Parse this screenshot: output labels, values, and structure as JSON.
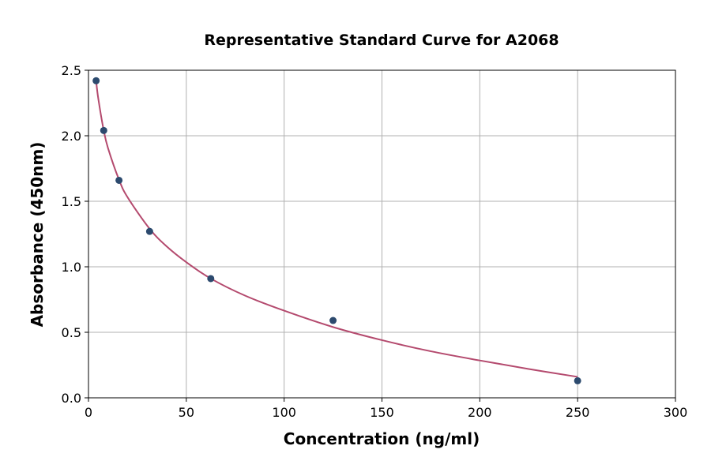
{
  "chart_data": {
    "type": "scatter",
    "title": "Representative Standard Curve for A2068",
    "xlabel": "Concentration (ng/ml)",
    "ylabel": "Absorbance (450nm)",
    "xlim": [
      0,
      300
    ],
    "ylim": [
      0,
      2.5
    ],
    "xticks": [
      "0",
      "50",
      "100",
      "150",
      "200",
      "250",
      "300"
    ],
    "yticks": [
      "0.0",
      "0.5",
      "1.0",
      "1.5",
      "2.0",
      "2.5"
    ],
    "grid": true,
    "points": {
      "x": [
        3.9,
        7.8,
        15.6,
        31.25,
        62.5,
        125,
        250
      ],
      "y": [
        2.42,
        2.04,
        1.66,
        1.27,
        0.91,
        0.59,
        0.13
      ]
    },
    "fit_curve": {
      "x": [
        3.9,
        5,
        7.8,
        10,
        15.6,
        20,
        31.25,
        40,
        50,
        62.5,
        80,
        100,
        125,
        150,
        175,
        200,
        225,
        250
      ],
      "y": [
        2.42,
        2.285,
        2.04,
        1.905,
        1.665,
        1.53,
        1.29,
        1.155,
        1.035,
        0.91,
        0.78,
        0.665,
        0.54,
        0.44,
        0.355,
        0.285,
        0.22,
        0.16
      ]
    },
    "colors": {
      "points": "#2c4a6e",
      "curve": "#b44a6e",
      "grid": "#b0b0b0"
    }
  }
}
